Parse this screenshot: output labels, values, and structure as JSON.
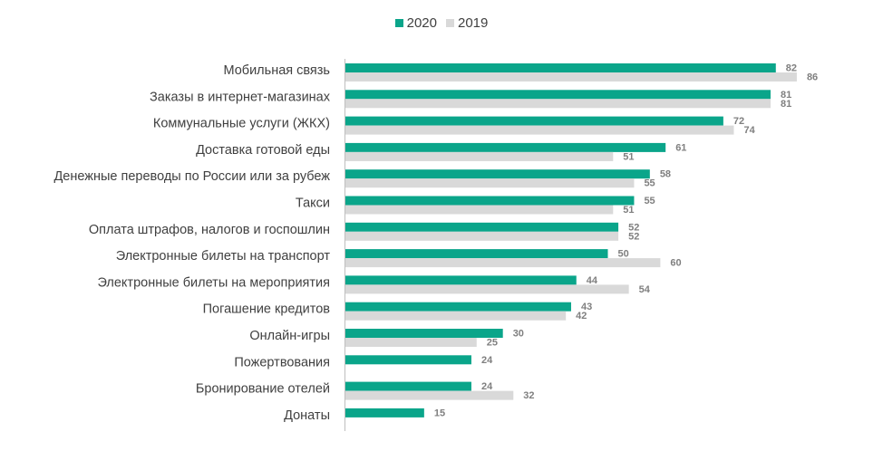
{
  "chart_data": {
    "type": "bar",
    "orientation": "horizontal",
    "categories": [
      "Мобильная  связь",
      "Заказы в интернет-магазинах",
      "Коммунальные услуги (ЖКХ)",
      "Доставка готовой еды",
      "Денежные переводы по России или за рубеж",
      "Такси",
      "Оплата штрафов, налогов и госпошлин",
      "Электронные билеты на транспорт",
      "Электронные билеты на мероприятия",
      "Погашение кредитов",
      "Онлайн-игры",
      "Пожертвования",
      "Бронирование отелей",
      "Донаты"
    ],
    "series": [
      {
        "name": "2020",
        "color": "#0aa58a",
        "values": [
          82,
          81,
          72,
          61,
          58,
          55,
          52,
          50,
          44,
          43,
          30,
          24,
          24,
          15
        ]
      },
      {
        "name": "2019",
        "color": "#d9d9d9",
        "values": [
          86,
          81,
          74,
          51,
          55,
          51,
          52,
          60,
          54,
          42,
          25,
          null,
          32,
          null
        ]
      }
    ],
    "xlim": [
      0,
      100
    ],
    "legend_position": "top-center",
    "grid": false
  }
}
